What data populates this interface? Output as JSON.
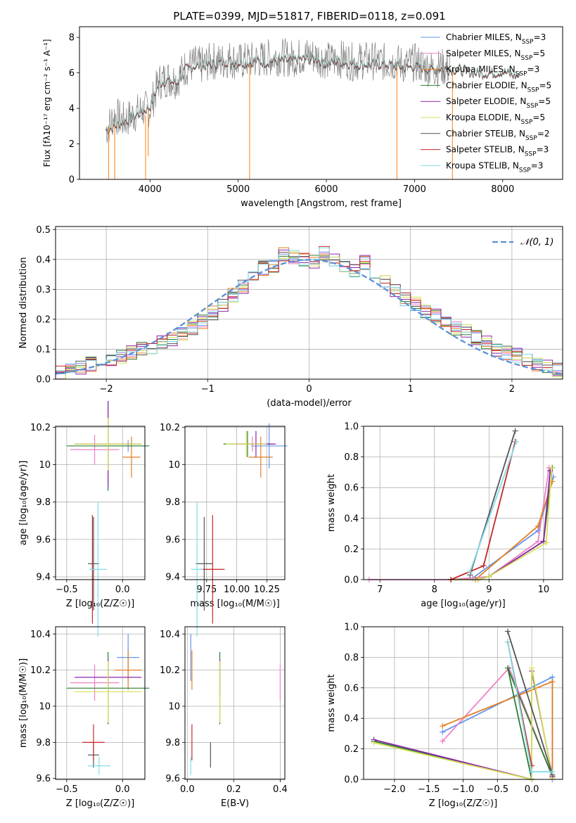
{
  "figure_title": "PLATE=0399, MJD=51817, FIBERID=0118, z=0.091",
  "colors": {
    "chabrier_miles": "#6495ed",
    "salpeter_miles": "#ee82c8",
    "kroupa_miles": "#e67e22",
    "chabrier_elodie": "#2e7d32",
    "salpeter_elodie": "#8e24aa",
    "kroupa_elodie": "#d4e157",
    "chabrier_stelib": "#555555",
    "salpeter_stelib": "#c62828",
    "kroupa_stelib": "#80deea",
    "data": "#808080",
    "normal": "#5b8fd9"
  },
  "legend_entries": [
    {
      "key": "chabrier_miles",
      "pre": "Chabrier MILES, N",
      "sub": "SSP",
      "post": "=3"
    },
    {
      "key": "salpeter_miles",
      "pre": "Salpeter MILES, N",
      "sub": "SSP",
      "post": "=5"
    },
    {
      "key": "kroupa_miles",
      "pre": "Kroupa MILES, N",
      "sub": "SSP",
      "post": "=3"
    },
    {
      "key": "chabrier_elodie",
      "pre": "Chabrier ELODIE, N",
      "sub": "SSP",
      "post": "=5"
    },
    {
      "key": "salpeter_elodie",
      "pre": "Salpeter ELODIE, N",
      "sub": "SSP",
      "post": "=5"
    },
    {
      "key": "kroupa_elodie",
      "pre": "Kroupa ELODIE, N",
      "sub": "SSP",
      "post": "=5"
    },
    {
      "key": "chabrier_stelib",
      "pre": "Chabrier STELIB, N",
      "sub": "SSP",
      "post": "=2"
    },
    {
      "key": "salpeter_stelib",
      "pre": "Salpeter STELIB, N",
      "sub": "SSP",
      "post": "=3"
    },
    {
      "key": "kroupa_stelib",
      "pre": "Kroupa STELIB, N",
      "sub": "SSP",
      "post": "=3"
    }
  ],
  "chart_data": [
    {
      "id": "spectrum",
      "type": "line",
      "xlabel": "wavelength [Angstrom, rest frame]",
      "ylabel": "Flux [fλ10⁻¹⁷ erg cm⁻² s⁻¹ A⁻¹]",
      "xlim": [
        3200,
        8680
      ],
      "ylim": [
        0,
        8.6
      ],
      "xticks": [
        4000,
        5000,
        6000,
        7000,
        8000
      ],
      "yticks": [
        0,
        2,
        4,
        6,
        8
      ],
      "data_series": {
        "name": "data",
        "x": [
          3500,
          3600,
          3700,
          3800,
          3900,
          4000,
          4100,
          4200,
          4300,
          4400,
          4500,
          4600,
          4700,
          4800,
          4900,
          5000,
          5100,
          5200,
          5300,
          5400,
          5500,
          5600,
          5700,
          5800,
          5900,
          6000,
          6100,
          6200,
          6300,
          6400,
          6500,
          6600,
          6700,
          6800,
          6900,
          7000,
          7100,
          7200,
          7300,
          7400
        ],
        "y": [
          2.8,
          3.6,
          3.3,
          3.6,
          3.9,
          4.0,
          5.5,
          5.7,
          5.6,
          6.3,
          6.5,
          6.4,
          6.7,
          6.6,
          6.8,
          6.6,
          6.7,
          6.7,
          6.8,
          6.9,
          6.9,
          6.8,
          6.9,
          7.0,
          6.9,
          6.7,
          6.7,
          6.8,
          6.6,
          6.7,
          6.7,
          6.6,
          6.6,
          6.6,
          6.4,
          6.6,
          6.4,
          6.2,
          6.3,
          6.3
        ]
      },
      "model_series": {
        "x": [
          3500,
          3600,
          3700,
          3800,
          3900,
          4000,
          4100,
          4200,
          4300,
          4400,
          4500,
          4600,
          4700,
          4800,
          4900,
          5000,
          5100,
          5200,
          5300,
          5400,
          5500,
          5600,
          5700,
          5800,
          5900,
          6000,
          6100,
          6200,
          6300,
          6400,
          6500,
          6600,
          6700,
          6800,
          6900,
          7000,
          7100,
          7200,
          7300,
          7400,
          7500,
          7600,
          7700,
          7800,
          7900,
          8000,
          8100,
          8200
        ],
        "y": [
          2.8,
          3.0,
          3.3,
          3.5,
          3.8,
          4.1,
          5.4,
          5.6,
          5.4,
          6.2,
          6.4,
          6.4,
          6.5,
          6.6,
          6.7,
          6.6,
          6.6,
          6.7,
          6.6,
          6.7,
          6.7,
          6.7,
          6.8,
          6.8,
          6.8,
          6.5,
          6.7,
          6.6,
          6.5,
          6.5,
          6.5,
          6.5,
          6.5,
          6.4,
          6.3,
          6.4,
          6.3,
          6.2,
          6.3,
          6.2,
          6.2,
          6.1,
          6.0,
          6.0,
          6.0,
          6.1,
          5.9,
          5.8
        ]
      }
    },
    {
      "id": "residuals",
      "type": "line",
      "xlabel": "(data-model)/error",
      "ylabel": "Normed distribution",
      "xlim": [
        -2.5,
        2.5
      ],
      "ylim": [
        0,
        0.51
      ],
      "xticks": [
        -2,
        -1,
        0,
        1,
        2
      ],
      "xticklabels": [
        "−2",
        "−1",
        "0",
        "1",
        "2"
      ],
      "yticks": [
        0,
        0.1,
        0.2,
        0.3,
        0.4,
        0.5
      ],
      "yticklabels": [
        "0.0",
        "0.1",
        "0.2",
        "0.3",
        "0.4",
        "0.5"
      ],
      "legend": "𝒩(0, 1)",
      "bins": [
        -2.5,
        -2.4,
        -2.3,
        -2.2,
        -2.1,
        -2.0,
        -1.9,
        -1.8,
        -1.7,
        -1.6,
        -1.5,
        -1.4,
        -1.3,
        -1.2,
        -1.1,
        -1.0,
        -0.9,
        -0.8,
        -0.7,
        -0.6,
        -0.5,
        -0.4,
        -0.3,
        -0.2,
        -0.1,
        0.0,
        0.1,
        0.2,
        0.3,
        0.4,
        0.5,
        0.6,
        0.7,
        0.8,
        0.9,
        1.0,
        1.1,
        1.2,
        1.3,
        1.4,
        1.5,
        1.6,
        1.7,
        1.8,
        1.9,
        2.0,
        2.1,
        2.2,
        2.3,
        2.4,
        2.5
      ],
      "base_hist": [
        0.02,
        0.03,
        0.04,
        0.05,
        0.06,
        0.065,
        0.075,
        0.09,
        0.1,
        0.11,
        0.12,
        0.13,
        0.15,
        0.17,
        0.19,
        0.22,
        0.25,
        0.28,
        0.31,
        0.34,
        0.37,
        0.38,
        0.42,
        0.41,
        0.4,
        0.39,
        0.42,
        0.4,
        0.38,
        0.36,
        0.39,
        0.36,
        0.33,
        0.3,
        0.27,
        0.25,
        0.23,
        0.21,
        0.19,
        0.17,
        0.16,
        0.14,
        0.12,
        0.1,
        0.09,
        0.08,
        0.07,
        0.05,
        0.04,
        0.03
      ]
    },
    {
      "id": "age_vs_Z",
      "type": "scatter",
      "xlabel": "Z [log₁₀(Z/Z☉)]",
      "ylabel": "age  [log₁₀(age/yr)]",
      "xlim": [
        -0.6,
        0.2
      ],
      "ylim": [
        9.385,
        10.205
      ],
      "xticks": [
        -0.5,
        0.0
      ],
      "xticklabels": [
        "−0.5",
        "0.0"
      ],
      "yticks": [
        9.4,
        9.6,
        9.8,
        10.0,
        10.2
      ],
      "points": [
        {
          "key": "chabrier_miles",
          "x": 0.05,
          "y": 10.1,
          "xe": 0.18,
          "ye": 0.03
        },
        {
          "key": "salpeter_miles",
          "x": -0.25,
          "y": 10.08,
          "xe": 0.22,
          "ye": 0.08
        },
        {
          "key": "kroupa_miles",
          "x": 0.08,
          "y": 10.04,
          "xe": 0.08,
          "ye": 0.11
        },
        {
          "key": "chabrier_elodie",
          "x": -0.13,
          "y": 10.1,
          "xe": 0.37,
          "ye": 0.24
        },
        {
          "key": "salpeter_elodie",
          "x": -0.13,
          "y": 10.11,
          "xe": 0.3,
          "ye": 0.23
        },
        {
          "key": "kroupa_elodie",
          "x": -0.13,
          "y": 10.11,
          "xe": 0.3,
          "ye": 0.14
        },
        {
          "key": "chabrier_stelib",
          "x": -0.26,
          "y": 9.47,
          "xe": 0.05,
          "ye": 0.25
        },
        {
          "key": "salpeter_stelib",
          "x": -0.27,
          "y": 9.44,
          "xe": 0.02,
          "ye": 0.29
        },
        {
          "key": "kroupa_stelib",
          "x": -0.22,
          "y": 9.44,
          "xe": 0.08,
          "ye": 0.36
        }
      ]
    },
    {
      "id": "age_vs_mass",
      "type": "scatter",
      "xlabel": "mass [log₁₀(M/M☉)]",
      "ylabel": "",
      "xlim": [
        9.57,
        10.4
      ],
      "ylim": [
        9.385,
        10.205
      ],
      "xticks": [
        9.75,
        10.0,
        10.25
      ],
      "xticklabels": [
        "9.75",
        "10.00",
        "10.25"
      ],
      "yticks": [
        9.4,
        9.6,
        9.8,
        10.0,
        10.2
      ],
      "points": [
        {
          "key": "chabrier_miles",
          "x": 10.27,
          "y": 10.1,
          "xe": 0.15,
          "ye": 0.12
        },
        {
          "key": "salpeter_miles",
          "x": 10.13,
          "y": 10.11,
          "xe": 0.2,
          "ye": 0.04
        },
        {
          "key": "kroupa_miles",
          "x": 10.2,
          "y": 10.04,
          "xe": 0.1,
          "ye": 0.11
        },
        {
          "key": "chabrier_elodie",
          "x": 10.09,
          "y": 10.11,
          "xe": 0.2,
          "ye": 0.07
        },
        {
          "key": "salpeter_elodie",
          "x": 10.16,
          "y": 10.11,
          "xe": 0.16,
          "ye": 0.07
        },
        {
          "key": "kroupa_elodie",
          "x": 10.08,
          "y": 10.11,
          "xe": 0.17,
          "ye": 0.07
        },
        {
          "key": "chabrier_stelib",
          "x": 9.73,
          "y": 9.47,
          "xe": 0.07,
          "ye": 0.25
        },
        {
          "key": "salpeter_stelib",
          "x": 9.8,
          "y": 9.44,
          "xe": 0.1,
          "ye": 0.29
        },
        {
          "key": "kroupa_stelib",
          "x": 9.67,
          "y": 9.44,
          "xe": 0.05,
          "ye": 0.36
        }
      ]
    },
    {
      "id": "mass_vs_Z",
      "type": "scatter",
      "xlabel": "Z [log₁₀(Z/Z☉)]",
      "ylabel": "mass [log₁₀(M/M☉)]",
      "xlim": [
        -0.6,
        0.2
      ],
      "ylim": [
        9.595,
        10.44
      ],
      "xticks": [
        -0.5,
        0.0
      ],
      "xticklabels": [
        "−0.5",
        "0.0"
      ],
      "yticks": [
        9.6,
        9.8,
        10.0,
        10.2,
        10.4
      ],
      "points": [
        {
          "key": "chabrier_miles",
          "x": 0.05,
          "y": 10.27,
          "xe": 0.1,
          "ye": 0.13
        },
        {
          "key": "salpeter_miles",
          "x": -0.25,
          "y": 10.13,
          "xe": 0.22,
          "ye": 0.1
        },
        {
          "key": "kroupa_miles",
          "x": 0.05,
          "y": 10.2,
          "xe": 0.12,
          "ye": 0.11
        },
        {
          "key": "chabrier_elodie",
          "x": -0.13,
          "y": 10.1,
          "xe": 0.37,
          "ye": 0.2
        },
        {
          "key": "salpeter_elodie",
          "x": -0.13,
          "y": 10.16,
          "xe": 0.3,
          "ye": 0.1
        },
        {
          "key": "kroupa_elodie",
          "x": -0.13,
          "y": 10.08,
          "xe": 0.3,
          "ye": 0.17
        },
        {
          "key": "chabrier_stelib",
          "x": -0.26,
          "y": 9.73,
          "xe": 0.05,
          "ye": 0.07
        },
        {
          "key": "salpeter_stelib",
          "x": -0.26,
          "y": 9.8,
          "xe": 0.1,
          "ye": 0.1
        },
        {
          "key": "kroupa_stelib",
          "x": -0.21,
          "y": 9.67,
          "xe": 0.1,
          "ye": 0.05
        }
      ]
    },
    {
      "id": "mass_vs_ebv",
      "type": "scatter",
      "xlabel": "E(B-V)",
      "ylabel": "",
      "xlim": [
        -0.01,
        0.42
      ],
      "ylim": [
        9.595,
        10.44
      ],
      "xticks": [
        0.0,
        0.2,
        0.4
      ],
      "xticklabels": [
        "0.0",
        "0.2",
        "0.4"
      ],
      "yticks": [
        9.6,
        9.8,
        10.0,
        10.2,
        10.4
      ],
      "points": [
        {
          "key": "chabrier_miles",
          "x": 0.015,
          "y": 10.27,
          "xe": 0,
          "ye": 0.13
        },
        {
          "key": "salpeter_miles",
          "x": 0.4,
          "y": 10.13,
          "xe": 0,
          "ye": 0.1
        },
        {
          "key": "kroupa_miles",
          "x": 0.02,
          "y": 10.2,
          "xe": 0,
          "ye": 0.11
        },
        {
          "key": "chabrier_elodie",
          "x": 0.14,
          "y": 10.1,
          "xe": 0,
          "ye": 0.2
        },
        {
          "key": "salpeter_elodie",
          "x": 0.14,
          "y": 10.16,
          "xe": 0,
          "ye": 0.1
        },
        {
          "key": "kroupa_elodie",
          "x": 0.14,
          "y": 10.08,
          "xe": 0,
          "ye": 0.17
        },
        {
          "key": "chabrier_stelib",
          "x": 0.1,
          "y": 9.73,
          "xe": 0,
          "ye": 0.07
        },
        {
          "key": "salpeter_stelib",
          "x": 0.02,
          "y": 9.8,
          "xe": 0,
          "ye": 0.1
        },
        {
          "key": "kroupa_stelib",
          "x": 0.015,
          "y": 9.67,
          "xe": 0,
          "ye": 0.05
        }
      ]
    },
    {
      "id": "massweight_vs_age",
      "type": "line",
      "xlabel": "age  [log₁₀(age/yr)]",
      "ylabel": "mass weight",
      "xlim": [
        6.7,
        10.35
      ],
      "ylim": [
        0,
        1.0
      ],
      "xticks": [
        7,
        8,
        9,
        10
      ],
      "xticklabels": [
        "7",
        "8",
        "9",
        "10"
      ],
      "yticks": [
        0,
        0.2,
        0.4,
        0.6,
        0.8,
        1.0
      ],
      "yticklabels": [
        "0.0",
        "0.2",
        "0.4",
        "0.6",
        "0.8",
        "1.0"
      ],
      "series": [
        {
          "key": "chabrier_miles",
          "x": [
            8.7,
            9.9,
            10.18
          ],
          "y": [
            0.01,
            0.32,
            0.67
          ]
        },
        {
          "key": "salpeter_miles",
          "x": [
            6.8,
            8.3,
            9.0,
            9.9,
            10.1
          ],
          "y": [
            0.0,
            0.0,
            0.02,
            0.25,
            0.73
          ]
        },
        {
          "key": "kroupa_miles",
          "x": [
            8.75,
            9.9,
            10.16
          ],
          "y": [
            0.0,
            0.35,
            0.64
          ]
        },
        {
          "key": "chabrier_elodie",
          "x": [
            8.3,
            8.8,
            9.0,
            10.0,
            10.16
          ],
          "y": [
            0.0,
            0.0,
            0.02,
            0.25,
            0.73
          ]
        },
        {
          "key": "salpeter_elodie",
          "x": [
            8.3,
            8.8,
            9.0,
            10.0,
            10.12
          ],
          "y": [
            0.0,
            0.0,
            0.02,
            0.25,
            0.71
          ]
        },
        {
          "key": "kroupa_elodie",
          "x": [
            8.3,
            8.8,
            9.0,
            10.05,
            10.15
          ],
          "y": [
            0.0,
            0.0,
            0.02,
            0.24,
            0.73
          ]
        },
        {
          "key": "chabrier_stelib",
          "x": [
            8.65,
            9.48
          ],
          "y": [
            0.03,
            0.97
          ]
        },
        {
          "key": "salpeter_stelib",
          "x": [
            8.3,
            8.9,
            9.48
          ],
          "y": [
            0.0,
            0.09,
            0.9
          ]
        },
        {
          "key": "kroupa_stelib",
          "x": [
            8.65,
            9.5
          ],
          "y": [
            0.05,
            0.9
          ]
        }
      ]
    },
    {
      "id": "massweight_vs_Z",
      "type": "line",
      "xlabel": "Z [log₁₀(Z/Z☉)]",
      "ylabel": "mass weight",
      "xlim": [
        -2.45,
        0.45
      ],
      "ylim": [
        0,
        1.0
      ],
      "xticks": [
        -2.0,
        -1.5,
        -1.0,
        -0.5,
        0.0
      ],
      "xticklabels": [
        "−2.0",
        "−1.5",
        "−1.0",
        "−0.5",
        "0.0"
      ],
      "yticks": [
        0,
        0.2,
        0.4,
        0.6,
        0.8,
        1.0
      ],
      "yticklabels": [
        "0.0",
        "0.2",
        "0.4",
        "0.6",
        "0.8",
        "1.0"
      ],
      "series": [
        {
          "key": "chabrier_miles",
          "x": [
            -1.3,
            0.3,
            0.3
          ],
          "y": [
            0.31,
            0.67,
            0.0
          ]
        },
        {
          "key": "salpeter_miles",
          "x": [
            -1.3,
            -0.33,
            0.3
          ],
          "y": [
            0.25,
            0.73,
            0.02
          ]
        },
        {
          "key": "kroupa_miles",
          "x": [
            -1.3,
            0.3,
            0.3
          ],
          "y": [
            0.35,
            0.64,
            0.01
          ]
        },
        {
          "key": "chabrier_elodie",
          "x": [
            -2.3,
            0.0,
            -0.35,
            0.3
          ],
          "y": [
            0.25,
            0.0,
            0.73,
            0.02
          ]
        },
        {
          "key": "salpeter_elodie",
          "x": [
            -2.3,
            0.0,
            0.0,
            0.3
          ],
          "y": [
            0.26,
            0.0,
            0.71,
            0.02
          ]
        },
        {
          "key": "kroupa_elodie",
          "x": [
            -2.3,
            0.0,
            0.0,
            0.3
          ],
          "y": [
            0.24,
            0.0,
            0.73,
            0.01
          ]
        },
        {
          "key": "chabrier_stelib",
          "x": [
            -0.35,
            0.3
          ],
          "y": [
            0.97,
            0.03
          ]
        },
        {
          "key": "salpeter_stelib",
          "x": [
            -0.35,
            0.0
          ],
          "y": [
            0.9,
            0.09
          ]
        },
        {
          "key": "kroupa_stelib",
          "x": [
            -0.35,
            0.0,
            0.3
          ],
          "y": [
            0.9,
            0.05,
            0.05
          ]
        }
      ]
    }
  ]
}
